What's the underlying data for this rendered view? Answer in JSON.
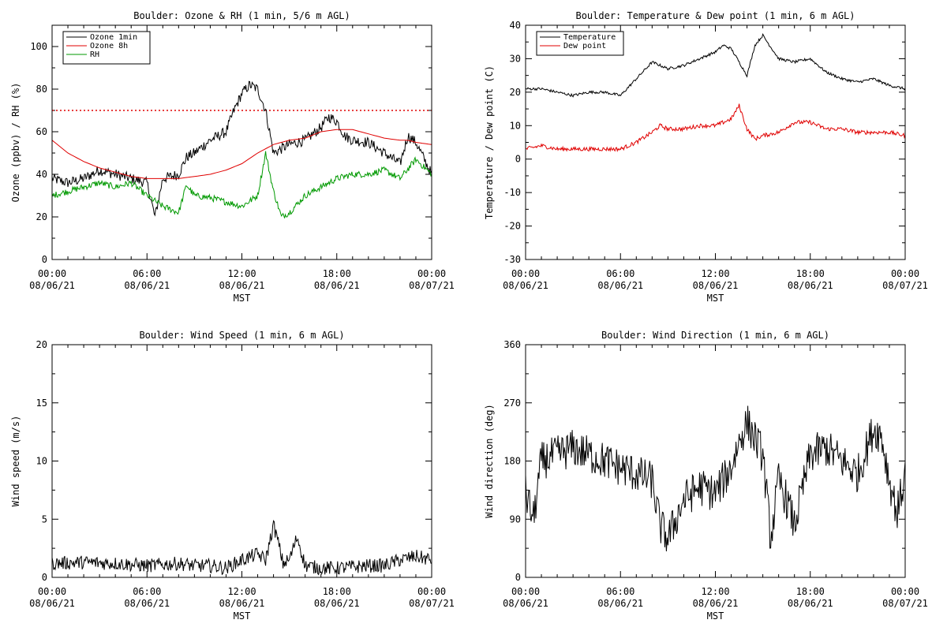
{
  "page": {
    "background": "#ffffff"
  },
  "chart_data": [
    {
      "id": "ozone_rh",
      "type": "line",
      "title": "Boulder: Ozone & RH (1 min, 5/6 m AGL)",
      "ylabel": "Ozone (ppbv) / RH (%)",
      "xlabel": "MST",
      "ylim": [
        0,
        110
      ],
      "yticks": [
        0,
        20,
        40,
        60,
        80,
        100
      ],
      "xlim_hours": [
        0,
        24
      ],
      "xtick_hours": [
        0,
        6,
        12,
        18,
        24
      ],
      "xtick_labels": [
        [
          "00:00",
          "08/06/21"
        ],
        [
          "06:00",
          "08/06/21"
        ],
        [
          "12:00",
          "08/06/21"
        ],
        [
          "18:00",
          "08/06/21"
        ],
        [
          "00:00",
          "08/07/21"
        ]
      ],
      "reference_line": {
        "y": 70,
        "color": "#e00000",
        "style": "dotted"
      },
      "legend": {
        "placement": "top-left",
        "entries": [
          {
            "label": "Ozone 1min",
            "color": "#000000"
          },
          {
            "label": "Ozone 8h",
            "color": "#e00000"
          },
          {
            "label": "RH",
            "color": "#009900"
          }
        ]
      },
      "series": [
        {
          "name": "Ozone 1min",
          "color": "#000000",
          "noise": 2.5,
          "hours": [
            0,
            1,
            2,
            3,
            4,
            5,
            6,
            6.5,
            7,
            8,
            8.5,
            9,
            10,
            11,
            11.5,
            12,
            12.5,
            13,
            13.5,
            14,
            15,
            16,
            17,
            17.5,
            18,
            18.5,
            19,
            20,
            21,
            22,
            22.5,
            23,
            24
          ],
          "values": [
            38,
            36,
            38,
            42,
            40,
            38,
            36,
            20,
            38,
            40,
            48,
            50,
            56,
            60,
            70,
            78,
            82,
            80,
            70,
            50,
            54,
            56,
            62,
            67,
            65,
            58,
            56,
            55,
            50,
            45,
            58,
            55,
            40
          ]
        },
        {
          "name": "Ozone 8h",
          "color": "#e00000",
          "noise": 0,
          "hours": [
            0,
            1,
            2,
            3,
            4,
            5,
            6,
            7,
            8,
            9,
            10,
            11,
            12,
            13,
            14,
            15,
            16,
            17,
            18,
            19,
            20,
            21,
            22,
            22.5,
            23,
            24
          ],
          "values": [
            56,
            50,
            46,
            43,
            41,
            39,
            38,
            38,
            38,
            39,
            40,
            42,
            45,
            50,
            54,
            56,
            57,
            60,
            61,
            61,
            59,
            57,
            56,
            56,
            55,
            54
          ]
        },
        {
          "name": "RH",
          "color": "#009900",
          "noise": 1.5,
          "hours": [
            0,
            1,
            2,
            3,
            4,
            5,
            6,
            7,
            8,
            8.5,
            9,
            10,
            11,
            12,
            13,
            13.5,
            14,
            14.5,
            15,
            16,
            17,
            18,
            19,
            20,
            21,
            22,
            23,
            24
          ],
          "values": [
            30,
            32,
            34,
            36,
            34,
            36,
            30,
            25,
            22,
            35,
            30,
            29,
            27,
            25,
            30,
            50,
            32,
            20,
            22,
            30,
            34,
            38,
            40,
            40,
            42,
            38,
            47,
            40
          ]
        }
      ]
    },
    {
      "id": "temp_dew",
      "type": "line",
      "title": "Boulder: Temperature & Dew point (1 min, 6 m AGL)",
      "ylabel": "Temperature / Dew point (C)",
      "xlabel": "MST",
      "ylim": [
        -30,
        40
      ],
      "yticks": [
        -30,
        -20,
        -10,
        0,
        10,
        20,
        30,
        40
      ],
      "xlim_hours": [
        0,
        24
      ],
      "xtick_hours": [
        0,
        6,
        12,
        18,
        24
      ],
      "xtick_labels": [
        [
          "00:00",
          "08/06/21"
        ],
        [
          "06:00",
          "08/06/21"
        ],
        [
          "12:00",
          "08/06/21"
        ],
        [
          "18:00",
          "08/06/21"
        ],
        [
          "00:00",
          "08/07/21"
        ]
      ],
      "legend": {
        "placement": "top-left",
        "entries": [
          {
            "label": "Temperature",
            "color": "#000000"
          },
          {
            "label": "Dew point",
            "color": "#e00000"
          }
        ]
      },
      "series": [
        {
          "name": "Temperature",
          "color": "#000000",
          "noise": 0.4,
          "hours": [
            0,
            1,
            2,
            3,
            4,
            5,
            6,
            7,
            8,
            8.5,
            9,
            10,
            11,
            12,
            12.5,
            13,
            13.5,
            14,
            14.5,
            15,
            16,
            17,
            18,
            19,
            20,
            21,
            22,
            23,
            24
          ],
          "values": [
            21,
            21,
            20,
            19,
            20,
            20,
            19,
            24,
            29,
            28,
            27,
            28,
            30,
            32,
            34,
            33,
            29,
            25,
            34,
            37,
            30,
            29,
            30,
            26,
            24,
            23,
            24,
            22,
            21
          ]
        },
        {
          "name": "Dew point",
          "color": "#e00000",
          "noise": 0.6,
          "hours": [
            0,
            1,
            2,
            3,
            4,
            5,
            6,
            7,
            8,
            8.5,
            9,
            10,
            11,
            12,
            13,
            13.5,
            14,
            14.5,
            15,
            16,
            17,
            18,
            19,
            20,
            21,
            22,
            23,
            24
          ],
          "values": [
            3,
            4,
            3,
            3,
            3,
            3,
            3,
            5,
            8,
            10,
            9,
            9,
            10,
            10,
            12,
            16,
            9,
            6,
            7,
            8,
            11,
            11,
            9,
            9,
            8,
            8,
            8,
            7
          ]
        }
      ]
    },
    {
      "id": "wind_speed",
      "type": "line",
      "title": "Boulder: Wind Speed (1 min, 6 m AGL)",
      "ylabel": "Wind speed (m/s)",
      "xlabel": "MST",
      "ylim": [
        0,
        20
      ],
      "yticks": [
        0,
        5,
        10,
        15,
        20
      ],
      "xlim_hours": [
        0,
        24
      ],
      "xtick_hours": [
        0,
        6,
        12,
        18,
        24
      ],
      "xtick_labels": [
        [
          "00:00",
          "08/06/21"
        ],
        [
          "06:00",
          "08/06/21"
        ],
        [
          "12:00",
          "08/06/21"
        ],
        [
          "18:00",
          "08/06/21"
        ],
        [
          "00:00",
          "08/07/21"
        ]
      ],
      "series": [
        {
          "name": "Wind speed",
          "color": "#000000",
          "noise": 0.6,
          "hours": [
            0,
            2,
            4,
            6,
            8,
            9,
            10,
            11,
            12,
            13,
            13.5,
            14,
            14.3,
            14.6,
            15,
            15.5,
            16,
            17,
            18,
            20,
            21,
            22,
            23,
            24
          ],
          "values": [
            1.2,
            1.3,
            1.2,
            1.0,
            1.2,
            1.0,
            1.0,
            0.8,
            1.5,
            2.0,
            1.5,
            4.5,
            3.0,
            1.2,
            1.5,
            3.5,
            1.0,
            0.8,
            0.8,
            1.0,
            1.0,
            1.5,
            1.8,
            1.5
          ]
        }
      ]
    },
    {
      "id": "wind_dir",
      "type": "line",
      "title": "Boulder: Wind Direction (1 min, 6 m AGL)",
      "ylabel": "Wind direction (deg)",
      "xlabel": "MST",
      "ylim": [
        0,
        360
      ],
      "yticks": [
        0,
        90,
        180,
        270,
        360
      ],
      "xlim_hours": [
        0,
        24
      ],
      "xtick_hours": [
        0,
        6,
        12,
        18,
        24
      ],
      "xtick_labels": [
        [
          "00:00",
          "08/06/21"
        ],
        [
          "06:00",
          "08/06/21"
        ],
        [
          "12:00",
          "08/06/21"
        ],
        [
          "18:00",
          "08/06/21"
        ],
        [
          "00:00",
          "08/07/21"
        ]
      ],
      "series": [
        {
          "name": "Wind direction",
          "color": "#000000",
          "noise": 30,
          "hours": [
            0,
            0.5,
            1,
            2,
            3,
            4,
            5,
            6,
            7,
            8,
            8.5,
            9,
            10,
            11,
            12,
            12.5,
            13,
            13.5,
            14,
            15,
            15.5,
            16,
            16.5,
            17,
            18,
            19,
            20,
            21,
            22,
            22.5,
            23,
            23.5,
            24
          ],
          "values": [
            130,
            90,
            180,
            190,
            200,
            190,
            180,
            170,
            160,
            150,
            80,
            60,
            120,
            140,
            130,
            150,
            170,
            210,
            240,
            190,
            60,
            150,
            120,
            80,
            190,
            200,
            180,
            160,
            230,
            220,
            150,
            100,
            160
          ]
        }
      ]
    }
  ]
}
